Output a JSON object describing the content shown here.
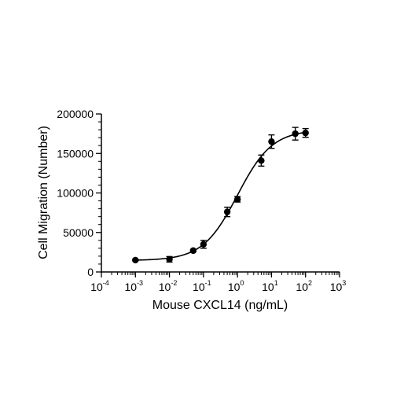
{
  "chart_data": {
    "type": "scatter",
    "title": "",
    "xlabel": "Mouse CXCL14 (ng/mL)",
    "ylabel": "Cell Migration (Number)",
    "x_scale": "log",
    "xlim": [
      0.0001,
      1000
    ],
    "ylim": [
      0,
      200000
    ],
    "x_tick_base": "10",
    "x_tick_exponents": [
      "-4",
      "-3",
      "-2",
      "-1",
      "0",
      "1",
      "2",
      "3"
    ],
    "y_ticks": [
      0,
      50000,
      100000,
      150000,
      200000
    ],
    "y_tick_labels": [
      "0",
      "50000",
      "100000",
      "150000",
      "200000"
    ],
    "grid": false,
    "legend": "none",
    "marker_color": "#000000",
    "series": [
      {
        "x": [
          0.001,
          0.01,
          0.05,
          0.1,
          0.5,
          1,
          5,
          10,
          50,
          100
        ],
        "y": [
          15000,
          16000,
          27000,
          35000,
          76000,
          92000,
          141000,
          165000,
          175000,
          176000
        ],
        "error": [
          1000,
          3500,
          1500,
          5000,
          6000,
          3500,
          7000,
          8500,
          8000,
          5500
        ]
      }
    ],
    "fit_curve": {
      "model": "four-parameter logistic",
      "bottom": 14500,
      "top": 180000,
      "ec50": 1.0,
      "hill_slope": 0.85
    }
  }
}
